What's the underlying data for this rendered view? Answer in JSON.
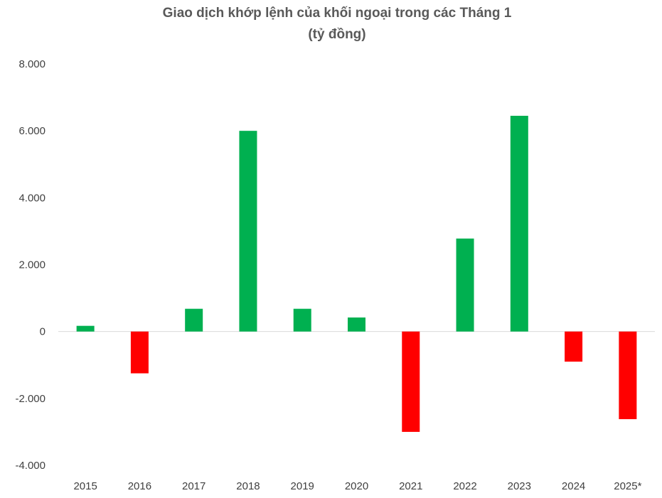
{
  "chart_data": {
    "type": "bar",
    "title": "Giao dịch khớp lệnh của khối ngoại trong các Tháng 1",
    "subtitle": "(tỷ đồng)",
    "xlabel": "",
    "ylabel": "",
    "categories": [
      "2015",
      "2016",
      "2017",
      "2018",
      "2019",
      "2020",
      "2021",
      "2022",
      "2023",
      "2024",
      "2025*"
    ],
    "values": [
      170,
      -1250,
      680,
      6000,
      680,
      420,
      -3000,
      2780,
      6450,
      -900,
      -2620
    ],
    "ylim": [
      -4000,
      8000
    ],
    "yticks": [
      8000,
      6000,
      4000,
      2000,
      0,
      -2000,
      -4000
    ],
    "ytick_labels": [
      "8.000",
      "6.000",
      "4.000",
      "2.000",
      "0",
      "-2.000",
      "-4.000"
    ],
    "grid": false,
    "legend": "none",
    "colors": {
      "positive": "#00B050",
      "negative": "#FF0000",
      "axis": "#D9D9D9"
    }
  }
}
